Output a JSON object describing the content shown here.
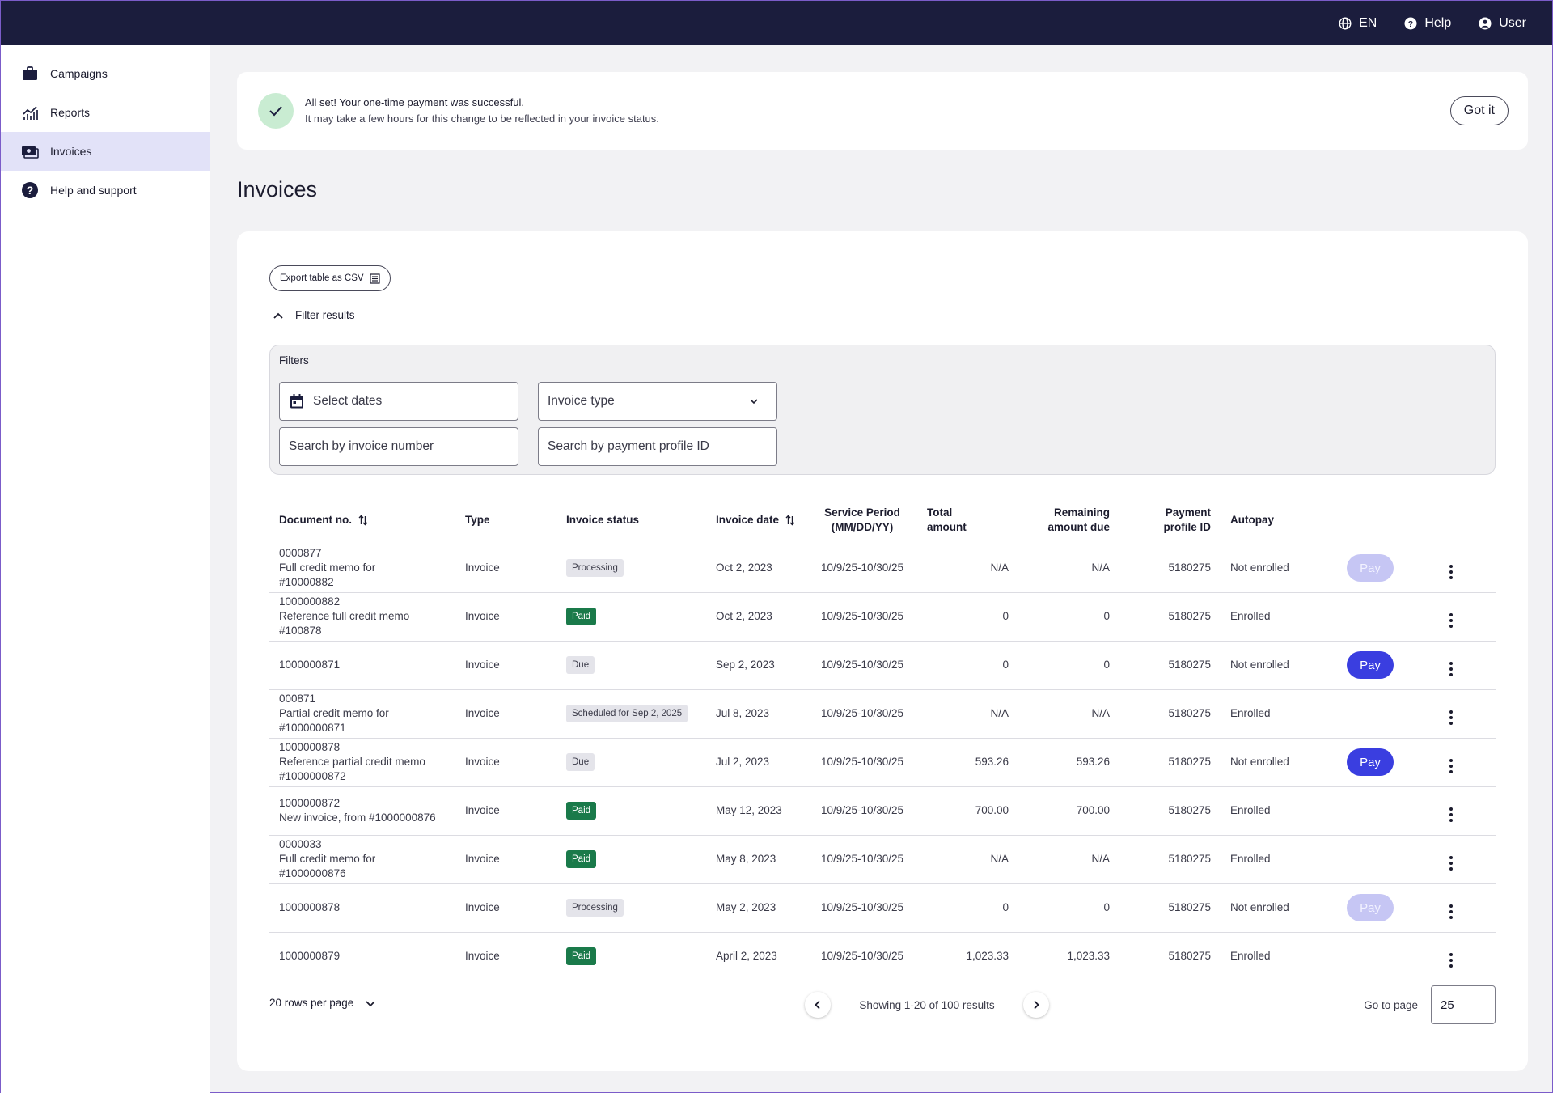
{
  "topbar": {
    "language": "EN",
    "help": "Help",
    "user": "User"
  },
  "sidebar": {
    "items": [
      {
        "label": "Campaigns",
        "icon": "briefcase-icon"
      },
      {
        "label": "Reports",
        "icon": "chart-icon"
      },
      {
        "label": "Invoices",
        "icon": "money-icon",
        "active": true
      },
      {
        "label": "Help and support",
        "icon": "question-circle-icon"
      }
    ]
  },
  "banner": {
    "title": "All set! Your one-time payment was successful.",
    "subtitle": "It may take a few hours for this change to be reflected in your invoice status.",
    "button": "Got it"
  },
  "page": {
    "title": "Invoices"
  },
  "toolbar": {
    "export_label": "Export table as CSV",
    "filter_toggle": "Filter results"
  },
  "filters": {
    "label": "Filters",
    "dates_placeholder": "Select dates",
    "type_placeholder": "Invoice type",
    "invoice_search_placeholder": "Search by invoice number",
    "profile_search_placeholder": "Search by payment profile ID"
  },
  "table": {
    "headers": {
      "document": "Document no.",
      "type": "Type",
      "status": "Invoice status",
      "date": "Invoice date",
      "period_line1": "Service Period",
      "period_line2": "(MM/DD/YY)",
      "total_line1": "Total",
      "total_line2": "amount",
      "remaining_line1": "Remaining",
      "remaining_line2": "amount due",
      "profile_line1": "Payment",
      "profile_line2": "profile ID",
      "autopay": "Autopay"
    },
    "pay_label": "Pay",
    "rows": [
      {
        "doc1": "0000877",
        "doc2": "Full credit memo for",
        "doc3": "#10000882",
        "type": "Invoice",
        "status": "Processing",
        "status_kind": "processing",
        "date": "Oct 2, 2023",
        "period": "10/9/25-10/30/25",
        "total": "N/A",
        "remaining": "N/A",
        "profile": "5180275",
        "autopay": "Not enrolled",
        "pay": "disabled"
      },
      {
        "doc1": "1000000882",
        "doc2": "Reference full credit memo",
        "doc3": "#100878",
        "type": "Invoice",
        "status": "Paid",
        "status_kind": "paid",
        "date": "Oct 2, 2023",
        "period": "10/9/25-10/30/25",
        "total": "0",
        "remaining": "0",
        "profile": "5180275",
        "autopay": "Enrolled",
        "pay": "none"
      },
      {
        "doc1": "1000000871",
        "doc2": "",
        "doc3": "",
        "type": "Invoice",
        "status": "Due",
        "status_kind": "due",
        "date": "Sep 2, 2023",
        "period": "10/9/25-10/30/25",
        "total": "0",
        "remaining": "0",
        "profile": "5180275",
        "autopay": "Not enrolled",
        "pay": "active"
      },
      {
        "doc1": "000871",
        "doc2": "Partial credit memo for",
        "doc3": "#1000000871",
        "type": "Invoice",
        "status": "Scheduled for Sep 2, 2025",
        "status_kind": "scheduled",
        "date": "Jul 8, 2023",
        "period": "10/9/25-10/30/25",
        "total": "N/A",
        "remaining": "N/A",
        "profile": "5180275",
        "autopay": "Enrolled",
        "pay": "none"
      },
      {
        "doc1": "1000000878",
        "doc2": "Reference partial credit memo",
        "doc3": "#1000000872",
        "type": "Invoice",
        "status": "Due",
        "status_kind": "due",
        "date": "Jul 2, 2023",
        "period": "10/9/25-10/30/25",
        "total": "593.26",
        "remaining": "593.26",
        "profile": "5180275",
        "autopay": "Not enrolled",
        "pay": "active"
      },
      {
        "doc1": "1000000872",
        "doc2": "New invoice, from #1000000876",
        "doc3": "",
        "type": "Invoice",
        "status": "Paid",
        "status_kind": "paid",
        "date": "May 12, 2023",
        "period": "10/9/25-10/30/25",
        "total": "700.00",
        "remaining": "700.00",
        "profile": "5180275",
        "autopay": "Enrolled",
        "pay": "none"
      },
      {
        "doc1": "0000033",
        "doc2": "Full credit memo for",
        "doc3": "#1000000876",
        "type": "Invoice",
        "status": "Paid",
        "status_kind": "paid",
        "date": "May 8, 2023",
        "period": "10/9/25-10/30/25",
        "total": "N/A",
        "remaining": "N/A",
        "profile": "5180275",
        "autopay": "Enrolled",
        "pay": "none"
      },
      {
        "doc1": "1000000878",
        "doc2": "",
        "doc3": "",
        "type": "Invoice",
        "status": "Processing",
        "status_kind": "processing",
        "date": "May 2, 2023",
        "period": "10/9/25-10/30/25",
        "total": "0",
        "remaining": "0",
        "profile": "5180275",
        "autopay": "Not enrolled",
        "pay": "disabled"
      },
      {
        "doc1": "1000000879",
        "doc2": "",
        "doc3": "",
        "type": "Invoice",
        "status": "Paid",
        "status_kind": "paid",
        "date": "April 2, 2023",
        "period": "10/9/25-10/30/25",
        "total": "1,023.33",
        "remaining": "1,023.33",
        "profile": "5180275",
        "autopay": "Enrolled",
        "pay": "none"
      }
    ]
  },
  "pagination": {
    "rows_per_page": "20 rows per page",
    "showing": "Showing 1-20 of 100 results",
    "goto_label": "Go to page",
    "goto_value": "25"
  },
  "colors": {
    "topbar": "#1b1d3d",
    "accent": "#3a3ee0",
    "paid": "#1a7a4a",
    "active_nav": "#e2e2f8"
  }
}
